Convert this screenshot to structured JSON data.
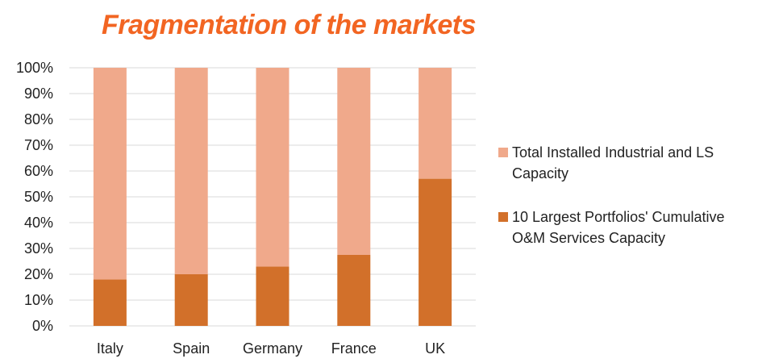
{
  "chart_data": {
    "type": "bar",
    "stacked": true,
    "percent_stacked": true,
    "title": "Fragmentation of the markets",
    "xlabel": "",
    "ylabel": "",
    "categories": [
      "Italy",
      "Spain",
      "Germany",
      "France",
      "UK"
    ],
    "y_ticks": [
      "0%",
      "10%",
      "20%",
      "30%",
      "40%",
      "50%",
      "60%",
      "70%",
      "80%",
      "90%",
      "100%"
    ],
    "ylim": [
      0,
      100
    ],
    "grid": true,
    "legend_position": "right",
    "series": [
      {
        "name": "10 Largest Portfolios' Cumulative O&M Services Capacity",
        "values": [
          18,
          20,
          23,
          27.5,
          57
        ],
        "color": "#d2702a"
      },
      {
        "name": "Total Installed Industrial and LS Capacity",
        "values": [
          82,
          80,
          77,
          72.5,
          43
        ],
        "color": "#f0a98b"
      }
    ]
  }
}
